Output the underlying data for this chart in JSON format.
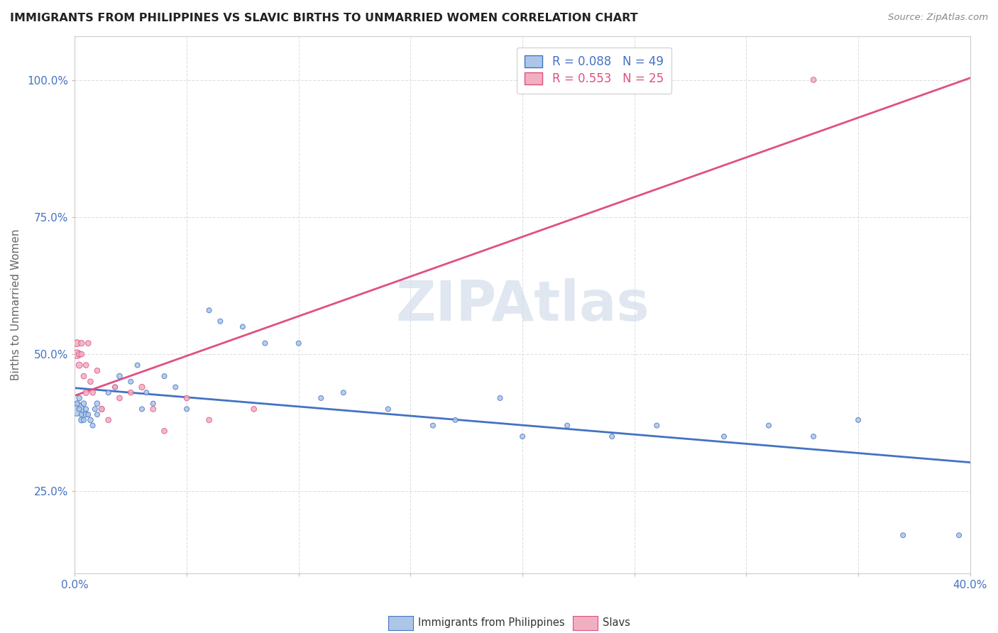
{
  "title": "IMMIGRANTS FROM PHILIPPINES VS SLAVIC BIRTHS TO UNMARRIED WOMEN CORRELATION CHART",
  "source": "Source: ZipAtlas.com",
  "ylabel": "Births to Unmarried Women",
  "xlim": [
    0.0,
    0.4
  ],
  "ylim": [
    0.1,
    1.08
  ],
  "xticks": [
    0.0,
    0.05,
    0.1,
    0.15,
    0.2,
    0.25,
    0.3,
    0.35,
    0.4
  ],
  "yticks": [
    0.25,
    0.5,
    0.75,
    1.0
  ],
  "ytick_labels": [
    "25.0%",
    "50.0%",
    "75.0%",
    "100.0%"
  ],
  "R_blue": 0.088,
  "N_blue": 49,
  "R_pink": 0.553,
  "N_pink": 25,
  "color_blue": "#adc6e8",
  "color_pink": "#f0b0c0",
  "line_color_blue": "#4472c4",
  "line_color_pink": "#e05080",
  "legend_label_blue": "Immigrants from Philippines",
  "legend_label_pink": "Slavs",
  "blue_x": [
    0.001,
    0.001,
    0.002,
    0.002,
    0.003,
    0.003,
    0.004,
    0.004,
    0.005,
    0.005,
    0.006,
    0.007,
    0.008,
    0.009,
    0.01,
    0.01,
    0.012,
    0.015,
    0.018,
    0.02,
    0.025,
    0.028,
    0.03,
    0.032,
    0.035,
    0.04,
    0.045,
    0.05,
    0.06,
    0.065,
    0.075,
    0.085,
    0.1,
    0.11,
    0.12,
    0.14,
    0.16,
    0.17,
    0.19,
    0.2,
    0.22,
    0.24,
    0.26,
    0.29,
    0.31,
    0.33,
    0.35,
    0.37,
    0.395
  ],
  "blue_y": [
    0.4,
    0.41,
    0.42,
    0.4,
    0.38,
    0.39,
    0.41,
    0.38,
    0.39,
    0.4,
    0.39,
    0.38,
    0.37,
    0.4,
    0.41,
    0.39,
    0.4,
    0.43,
    0.44,
    0.46,
    0.45,
    0.48,
    0.4,
    0.43,
    0.41,
    0.46,
    0.44,
    0.4,
    0.58,
    0.56,
    0.55,
    0.52,
    0.52,
    0.42,
    0.43,
    0.4,
    0.37,
    0.38,
    0.42,
    0.35,
    0.37,
    0.35,
    0.37,
    0.35,
    0.37,
    0.35,
    0.38,
    0.17,
    0.17
  ],
  "blue_size": [
    200,
    30,
    30,
    25,
    35,
    25,
    30,
    25,
    30,
    25,
    25,
    30,
    25,
    25,
    30,
    25,
    25,
    25,
    25,
    30,
    25,
    25,
    25,
    25,
    25,
    25,
    25,
    25,
    25,
    25,
    25,
    25,
    25,
    25,
    25,
    25,
    25,
    25,
    25,
    25,
    25,
    25,
    25,
    25,
    25,
    25,
    25,
    25,
    25
  ],
  "pink_x": [
    0.001,
    0.001,
    0.002,
    0.002,
    0.003,
    0.003,
    0.004,
    0.005,
    0.005,
    0.006,
    0.007,
    0.008,
    0.01,
    0.012,
    0.015,
    0.018,
    0.02,
    0.025,
    0.03,
    0.035,
    0.04,
    0.05,
    0.06,
    0.08,
    0.33
  ],
  "pink_y": [
    0.5,
    0.52,
    0.48,
    0.5,
    0.52,
    0.5,
    0.46,
    0.48,
    0.43,
    0.52,
    0.45,
    0.43,
    0.47,
    0.4,
    0.38,
    0.44,
    0.42,
    0.43,
    0.44,
    0.4,
    0.36,
    0.42,
    0.38,
    0.4,
    1.0
  ],
  "pink_size": [
    80,
    50,
    40,
    35,
    35,
    30,
    30,
    30,
    35,
    30,
    30,
    30,
    30,
    35,
    30,
    25,
    30,
    30,
    35,
    30,
    30,
    30,
    30,
    30,
    30
  ],
  "watermark_text": "ZIPAtlas",
  "watermark_color": "#ccd8e8",
  "background_color": "#ffffff",
  "grid_color": "#e0e0e0"
}
